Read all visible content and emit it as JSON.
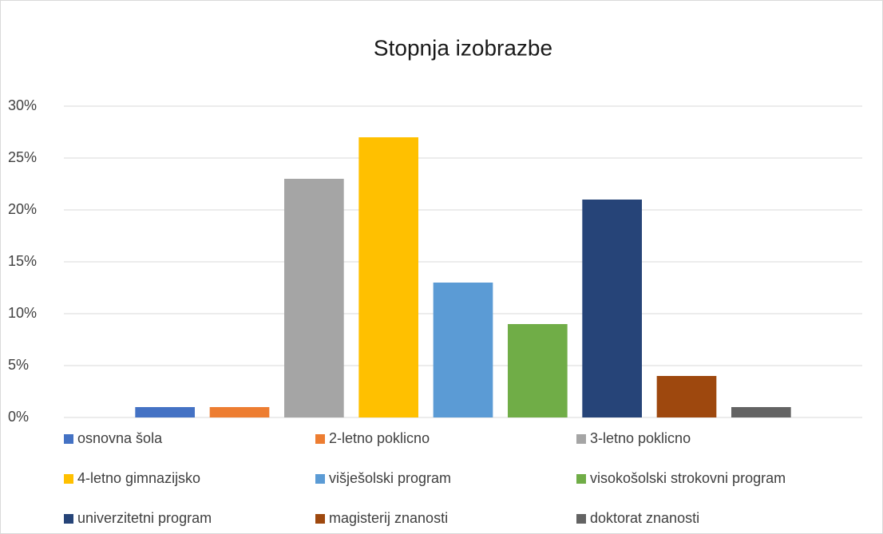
{
  "chart_data": {
    "type": "bar",
    "title": "Stopnja izobrazbe",
    "categories": [
      null
    ],
    "series": [
      {
        "name": "osnovna šola",
        "color": "#4472c4",
        "values": [
          1
        ]
      },
      {
        "name": "2-letno poklicno",
        "color": "#ed7d31",
        "values": [
          1
        ]
      },
      {
        "name": "3-letno poklicno",
        "color": "#a5a5a5",
        "values": [
          23
        ]
      },
      {
        "name": "4-letno gimnazijsko",
        "color": "#ffc000",
        "values": [
          27
        ]
      },
      {
        "name": "višješolski program",
        "color": "#5b9bd5",
        "values": [
          13
        ]
      },
      {
        "name": "visokošolski strokovni program",
        "color": "#70ad47",
        "values": [
          9
        ]
      },
      {
        "name": "univerzitetni program",
        "color": "#264478",
        "values": [
          21
        ]
      },
      {
        "name": "magisterij znanosti",
        "color": "#9e480e",
        "values": [
          4
        ]
      },
      {
        "name": "doktorat znanosti",
        "color": "#636363",
        "values": [
          1
        ]
      }
    ],
    "ylim": [
      0,
      30
    ],
    "yticks": [
      {
        "value": 0,
        "label": "0%"
      },
      {
        "value": 5,
        "label": "5%"
      },
      {
        "value": 10,
        "label": "10%"
      },
      {
        "value": 15,
        "label": "15%"
      },
      {
        "value": 20,
        "label": "20%"
      },
      {
        "value": 25,
        "label": "25%"
      },
      {
        "value": 30,
        "label": "30%"
      }
    ],
    "grid": true,
    "legend": "bottom"
  }
}
